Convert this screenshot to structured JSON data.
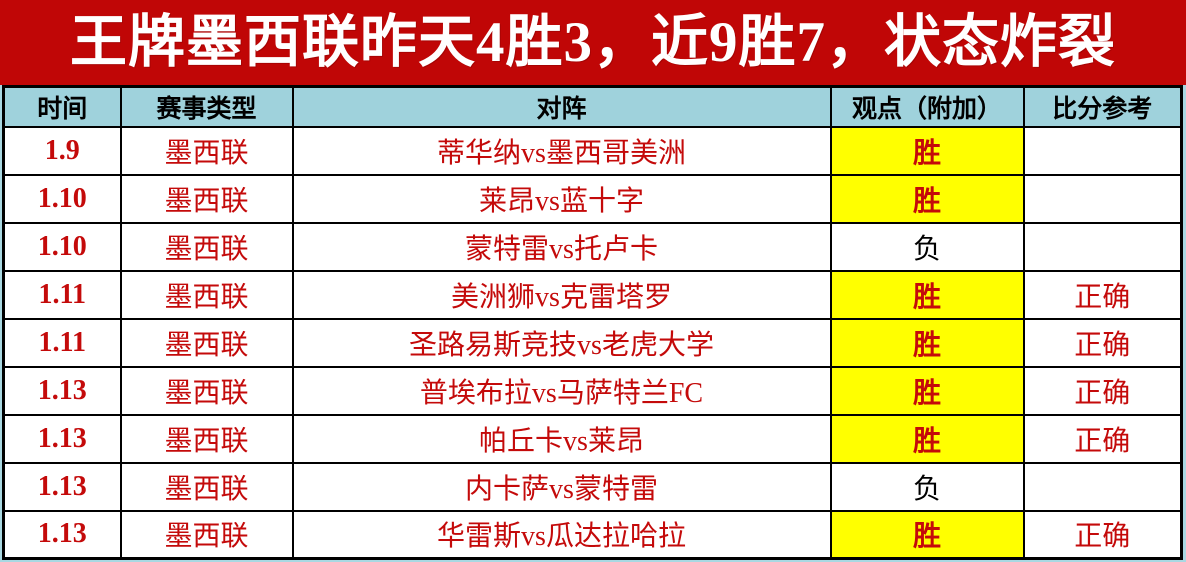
{
  "banner": {
    "title": "王牌墨西联昨天4胜3，近9胜7，状态炸裂"
  },
  "table": {
    "columns": [
      "时间",
      "赛事类型",
      "对阵",
      "观点（附加）",
      "比分参考"
    ],
    "rows": [
      {
        "date": "1.9",
        "league": "墨西联",
        "matchup": "蒂华纳vs墨西哥美洲",
        "pick": "胜",
        "highlight": true,
        "result": ""
      },
      {
        "date": "1.10",
        "league": "墨西联",
        "matchup": "莱昂vs蓝十字",
        "pick": "胜",
        "highlight": true,
        "result": ""
      },
      {
        "date": "1.10",
        "league": "墨西联",
        "matchup": "蒙特雷vs托卢卡",
        "pick": "负",
        "highlight": false,
        "result": ""
      },
      {
        "date": "1.11",
        "league": "墨西联",
        "matchup": "美洲狮vs克雷塔罗",
        "pick": "胜",
        "highlight": true,
        "result": "正确"
      },
      {
        "date": "1.11",
        "league": "墨西联",
        "matchup": "圣路易斯竞技vs老虎大学",
        "pick": "胜",
        "highlight": true,
        "result": "正确"
      },
      {
        "date": "1.13",
        "league": "墨西联",
        "matchup": "普埃布拉vs马萨特兰FC",
        "pick": "胜",
        "highlight": true,
        "result": "正确"
      },
      {
        "date": "1.13",
        "league": "墨西联",
        "matchup": "帕丘卡vs莱昂",
        "pick": "胜",
        "highlight": true,
        "result": "正确"
      },
      {
        "date": "1.13",
        "league": "墨西联",
        "matchup": "内卡萨vs蒙特雷",
        "pick": "负",
        "highlight": false,
        "result": ""
      },
      {
        "date": "1.13",
        "league": "墨西联",
        "matchup": "华雷斯vs瓜达拉哈拉",
        "pick": "胜",
        "highlight": true,
        "result": "正确"
      }
    ]
  },
  "colors": {
    "banner_bg": "#c00606",
    "banner_text": "#ffffff",
    "header_bg": "#9fd2dc",
    "red_text": "#c40a0a",
    "pick_win_bg": "#ffff00",
    "pick_lose_text": "#000000",
    "border": "#000000",
    "page_margin": "#a9d8e2"
  }
}
